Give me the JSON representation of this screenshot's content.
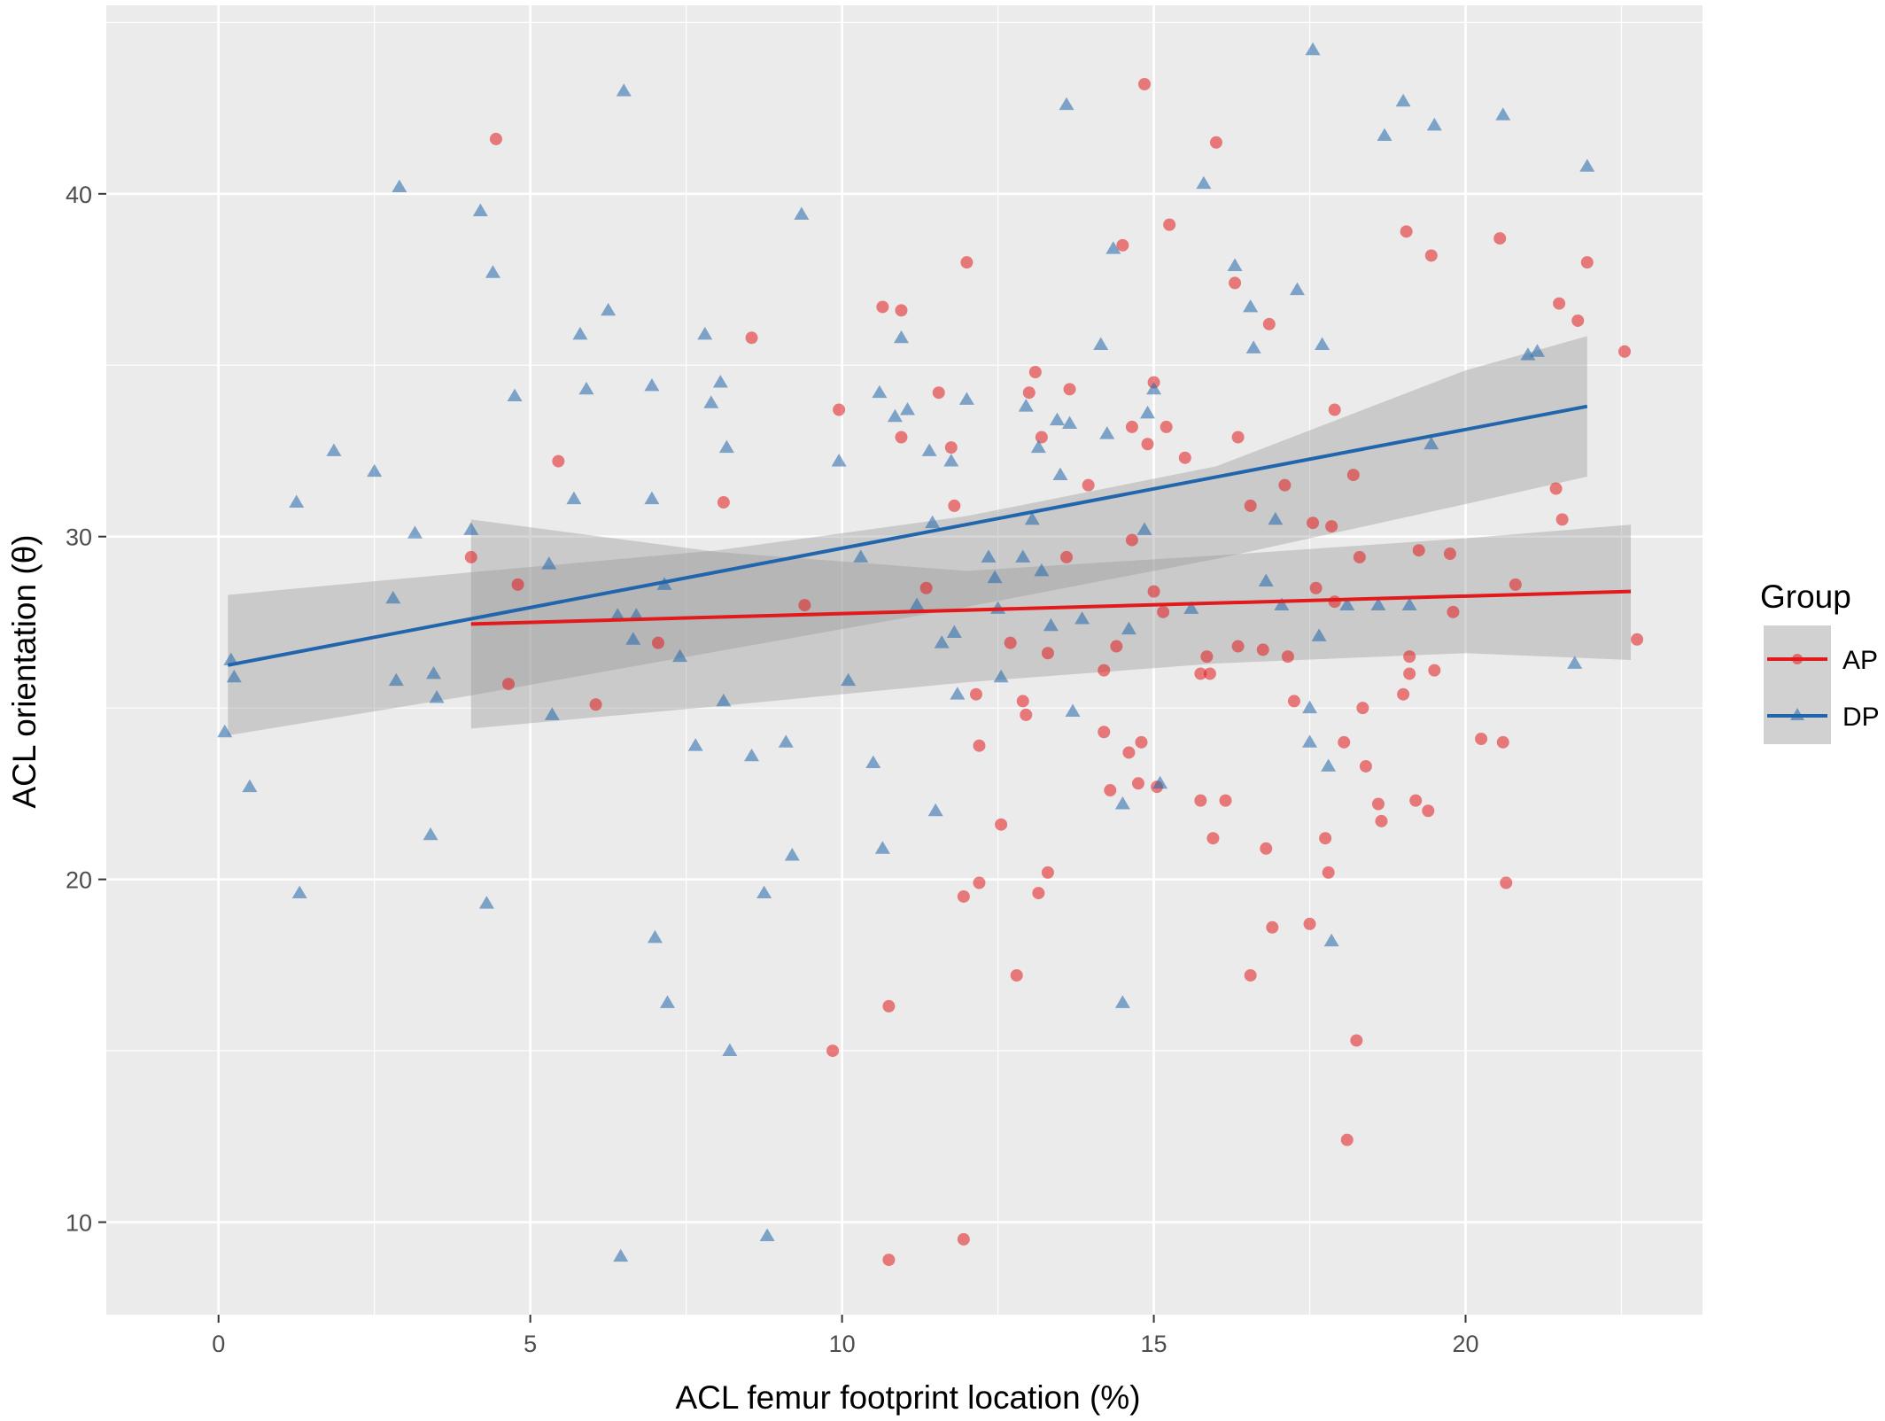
{
  "chart_data": {
    "type": "scatter",
    "xlabel": "ACL femur footprint location (%)",
    "ylabel": "ACL orientation (θ)",
    "xlim": [
      -1.8,
      23.8
    ],
    "ylim": [
      7.3,
      45.5
    ],
    "xticks": [
      0,
      5,
      10,
      15,
      20
    ],
    "yticks": [
      10,
      20,
      30,
      40
    ],
    "grid": true,
    "legend": {
      "title": "Group",
      "placement": "right"
    },
    "series": [
      {
        "name": "AP",
        "marker": "circle",
        "color": "#e31a1c",
        "fit": {
          "x": [
            4.05,
            22.65
          ],
          "y": [
            27.45,
            28.4
          ]
        },
        "band": {
          "x": [
            4.05,
            8,
            12,
            16,
            20,
            22.65
          ],
          "lower": [
            24.4,
            25.05,
            25.75,
            26.3,
            26.6,
            26.4
          ],
          "upper": [
            30.5,
            29.55,
            29.0,
            29.45,
            29.95,
            30.35
          ]
        },
        "points": [
          [
            4.45,
            41.6
          ],
          [
            4.05,
            29.4
          ],
          [
            4.65,
            25.7
          ],
          [
            4.8,
            28.6
          ],
          [
            5.45,
            32.2
          ],
          [
            6.05,
            25.1
          ],
          [
            7.05,
            26.9
          ],
          [
            8.1,
            31.0
          ],
          [
            8.55,
            35.8
          ],
          [
            9.4,
            28.0
          ],
          [
            9.85,
            15.0
          ],
          [
            9.95,
            33.7
          ],
          [
            10.65,
            36.7
          ],
          [
            10.75,
            16.3
          ],
          [
            10.75,
            8.9
          ],
          [
            10.95,
            36.6
          ],
          [
            10.95,
            32.9
          ],
          [
            11.35,
            28.5
          ],
          [
            11.55,
            34.2
          ],
          [
            11.75,
            32.6
          ],
          [
            11.8,
            30.9
          ],
          [
            11.95,
            19.5
          ],
          [
            11.95,
            9.5
          ],
          [
            12.0,
            38.0
          ],
          [
            12.15,
            25.4
          ],
          [
            12.2,
            23.9
          ],
          [
            12.2,
            19.9
          ],
          [
            12.55,
            21.6
          ],
          [
            12.7,
            26.9
          ],
          [
            12.8,
            17.2
          ],
          [
            12.9,
            25.2
          ],
          [
            12.95,
            24.8
          ],
          [
            13.0,
            34.2
          ],
          [
            13.1,
            34.8
          ],
          [
            13.15,
            19.6
          ],
          [
            13.2,
            32.9
          ],
          [
            13.3,
            26.6
          ],
          [
            13.3,
            20.2
          ],
          [
            13.6,
            29.4
          ],
          [
            13.65,
            34.3
          ],
          [
            13.95,
            31.5
          ],
          [
            14.2,
            26.1
          ],
          [
            14.2,
            24.3
          ],
          [
            14.3,
            22.6
          ],
          [
            14.4,
            26.8
          ],
          [
            14.5,
            38.5
          ],
          [
            14.6,
            23.7
          ],
          [
            14.65,
            33.2
          ],
          [
            14.65,
            29.9
          ],
          [
            14.75,
            22.8
          ],
          [
            14.8,
            24.0
          ],
          [
            14.85,
            43.2
          ],
          [
            14.9,
            32.7
          ],
          [
            15.0,
            34.5
          ],
          [
            15.0,
            28.4
          ],
          [
            15.05,
            22.7
          ],
          [
            15.15,
            27.8
          ],
          [
            15.2,
            33.2
          ],
          [
            15.25,
            39.1
          ],
          [
            15.5,
            32.3
          ],
          [
            15.75,
            26.0
          ],
          [
            15.75,
            22.3
          ],
          [
            15.85,
            26.5
          ],
          [
            15.9,
            26.0
          ],
          [
            15.95,
            21.2
          ],
          [
            16.0,
            41.5
          ],
          [
            16.15,
            22.3
          ],
          [
            16.3,
            37.4
          ],
          [
            16.35,
            32.9
          ],
          [
            16.35,
            26.8
          ],
          [
            16.55,
            30.9
          ],
          [
            16.55,
            17.2
          ],
          [
            16.75,
            26.7
          ],
          [
            16.8,
            20.9
          ],
          [
            16.85,
            36.2
          ],
          [
            16.9,
            18.6
          ],
          [
            17.1,
            31.5
          ],
          [
            17.15,
            26.5
          ],
          [
            17.25,
            25.2
          ],
          [
            17.5,
            18.7
          ],
          [
            17.55,
            30.4
          ],
          [
            17.6,
            28.5
          ],
          [
            17.75,
            21.2
          ],
          [
            17.8,
            20.2
          ],
          [
            17.85,
            30.3
          ],
          [
            17.9,
            33.7
          ],
          [
            17.9,
            28.1
          ],
          [
            18.05,
            24.0
          ],
          [
            18.1,
            12.4
          ],
          [
            18.2,
            31.8
          ],
          [
            18.25,
            15.3
          ],
          [
            18.3,
            29.4
          ],
          [
            18.35,
            25.0
          ],
          [
            18.4,
            23.3
          ],
          [
            18.6,
            22.2
          ],
          [
            18.65,
            21.7
          ],
          [
            19.0,
            25.4
          ],
          [
            19.05,
            38.9
          ],
          [
            19.1,
            26.5
          ],
          [
            19.1,
            26.0
          ],
          [
            19.2,
            22.3
          ],
          [
            19.25,
            29.6
          ],
          [
            19.4,
            22.0
          ],
          [
            19.45,
            38.2
          ],
          [
            19.5,
            26.1
          ],
          [
            19.75,
            29.5
          ],
          [
            19.8,
            27.8
          ],
          [
            20.25,
            24.1
          ],
          [
            20.55,
            38.7
          ],
          [
            20.6,
            24.0
          ],
          [
            20.65,
            19.9
          ],
          [
            20.8,
            28.6
          ],
          [
            21.45,
            31.4
          ],
          [
            21.5,
            36.8
          ],
          [
            21.55,
            30.5
          ],
          [
            21.8,
            36.3
          ],
          [
            21.95,
            38.0
          ],
          [
            22.55,
            35.4
          ],
          [
            22.75,
            27.0
          ]
        ]
      },
      {
        "name": "DP",
        "marker": "triangle",
        "color": "#2166ac",
        "fit": {
          "x": [
            0.15,
            21.95
          ],
          "y": [
            26.25,
            33.8
          ]
        },
        "band": {
          "x": [
            0.15,
            4,
            8,
            12,
            16,
            20,
            21.95
          ],
          "lower": [
            24.2,
            25.35,
            26.65,
            27.95,
            29.35,
            30.95,
            31.75
          ],
          "upper": [
            28.3,
            28.95,
            29.6,
            30.6,
            32.05,
            34.85,
            35.85
          ]
        },
        "points": [
          [
            0.1,
            24.3
          ],
          [
            0.2,
            26.4
          ],
          [
            0.25,
            25.9
          ],
          [
            0.5,
            22.7
          ],
          [
            1.25,
            31.0
          ],
          [
            1.3,
            19.6
          ],
          [
            1.85,
            32.5
          ],
          [
            2.5,
            31.9
          ],
          [
            2.8,
            28.2
          ],
          [
            2.85,
            25.8
          ],
          [
            2.9,
            40.2
          ],
          [
            3.15,
            30.1
          ],
          [
            3.4,
            21.3
          ],
          [
            3.45,
            26.0
          ],
          [
            3.5,
            25.3
          ],
          [
            4.05,
            30.2
          ],
          [
            4.2,
            39.5
          ],
          [
            4.3,
            19.3
          ],
          [
            4.4,
            37.7
          ],
          [
            4.75,
            34.1
          ],
          [
            5.3,
            29.2
          ],
          [
            5.35,
            24.8
          ],
          [
            5.7,
            31.1
          ],
          [
            5.8,
            35.9
          ],
          [
            5.9,
            34.3
          ],
          [
            6.25,
            36.6
          ],
          [
            6.4,
            27.7
          ],
          [
            6.45,
            9.0
          ],
          [
            6.5,
            43.0
          ],
          [
            6.65,
            27.0
          ],
          [
            6.7,
            27.7
          ],
          [
            6.95,
            34.4
          ],
          [
            6.95,
            31.1
          ],
          [
            7.0,
            18.3
          ],
          [
            7.15,
            28.6
          ],
          [
            7.2,
            16.4
          ],
          [
            7.4,
            26.5
          ],
          [
            7.65,
            23.9
          ],
          [
            7.8,
            35.9
          ],
          [
            7.9,
            33.9
          ],
          [
            8.05,
            34.5
          ],
          [
            8.1,
            25.2
          ],
          [
            8.15,
            32.6
          ],
          [
            8.2,
            15.0
          ],
          [
            8.55,
            23.6
          ],
          [
            8.75,
            19.6
          ],
          [
            8.8,
            9.6
          ],
          [
            9.1,
            24.0
          ],
          [
            9.2,
            20.7
          ],
          [
            9.35,
            39.4
          ],
          [
            9.95,
            32.2
          ],
          [
            10.1,
            25.8
          ],
          [
            10.3,
            29.4
          ],
          [
            10.5,
            23.4
          ],
          [
            10.6,
            34.2
          ],
          [
            10.65,
            20.9
          ],
          [
            10.85,
            33.5
          ],
          [
            10.95,
            35.8
          ],
          [
            11.05,
            33.7
          ],
          [
            11.2,
            28.0
          ],
          [
            11.4,
            32.5
          ],
          [
            11.45,
            30.4
          ],
          [
            11.5,
            22.0
          ],
          [
            11.6,
            26.9
          ],
          [
            11.75,
            32.2
          ],
          [
            11.8,
            27.2
          ],
          [
            11.85,
            25.4
          ],
          [
            12.0,
            34.0
          ],
          [
            12.35,
            29.4
          ],
          [
            12.45,
            28.8
          ],
          [
            12.5,
            27.9
          ],
          [
            12.55,
            25.9
          ],
          [
            12.9,
            29.4
          ],
          [
            12.95,
            33.8
          ],
          [
            13.05,
            30.5
          ],
          [
            13.15,
            32.6
          ],
          [
            13.2,
            29.0
          ],
          [
            13.35,
            27.4
          ],
          [
            13.45,
            33.4
          ],
          [
            13.5,
            31.8
          ],
          [
            13.6,
            42.6
          ],
          [
            13.65,
            33.3
          ],
          [
            13.7,
            24.9
          ],
          [
            13.85,
            27.6
          ],
          [
            14.15,
            35.6
          ],
          [
            14.25,
            33.0
          ],
          [
            14.35,
            38.4
          ],
          [
            14.5,
            16.4
          ],
          [
            14.5,
            22.2
          ],
          [
            14.6,
            27.3
          ],
          [
            14.85,
            30.2
          ],
          [
            14.9,
            33.6
          ],
          [
            15.0,
            34.3
          ],
          [
            15.1,
            22.8
          ],
          [
            15.6,
            27.9
          ],
          [
            15.8,
            40.3
          ],
          [
            16.3,
            37.9
          ],
          [
            16.55,
            36.7
          ],
          [
            16.6,
            35.5
          ],
          [
            16.8,
            28.7
          ],
          [
            16.95,
            30.5
          ],
          [
            17.05,
            28.0
          ],
          [
            17.3,
            37.2
          ],
          [
            17.5,
            25.0
          ],
          [
            17.55,
            44.2
          ],
          [
            17.65,
            27.1
          ],
          [
            17.7,
            35.6
          ],
          [
            17.8,
            23.3
          ],
          [
            17.85,
            18.2
          ],
          [
            17.5,
            24.0
          ],
          [
            18.1,
            28.0
          ],
          [
            18.6,
            28.0
          ],
          [
            18.7,
            41.7
          ],
          [
            19.0,
            42.7
          ],
          [
            19.1,
            28.0
          ],
          [
            19.45,
            32.7
          ],
          [
            19.5,
            42.0
          ],
          [
            20.6,
            42.3
          ],
          [
            21.0,
            35.3
          ],
          [
            21.15,
            35.4
          ],
          [
            21.75,
            26.3
          ],
          [
            21.95,
            40.8
          ]
        ]
      }
    ]
  },
  "colors": {
    "panel": "#ebebeb",
    "grid": "#ffffff",
    "band": "#999999",
    "ap_line": "#e31a1c",
    "dp_line": "#2166ac"
  }
}
